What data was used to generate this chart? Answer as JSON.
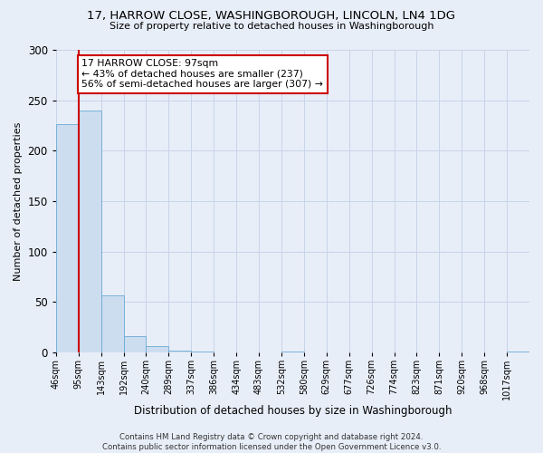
{
  "title": "17, HARROW CLOSE, WASHINGBOROUGH, LINCOLN, LN4 1DG",
  "subtitle": "Size of property relative to detached houses in Washingborough",
  "xlabel": "Distribution of detached houses by size in Washingborough",
  "ylabel": "Number of detached properties",
  "bin_labels": [
    "46sqm",
    "95sqm",
    "143sqm",
    "192sqm",
    "240sqm",
    "289sqm",
    "337sqm",
    "386sqm",
    "434sqm",
    "483sqm",
    "532sqm",
    "580sqm",
    "629sqm",
    "677sqm",
    "726sqm",
    "774sqm",
    "823sqm",
    "871sqm",
    "920sqm",
    "968sqm",
    "1017sqm"
  ],
  "bar_values": [
    226,
    240,
    57,
    16,
    6,
    2,
    1,
    0,
    0,
    0,
    1,
    0,
    0,
    0,
    0,
    0,
    0,
    0,
    0,
    0,
    1
  ],
  "bar_color": "#ccddf0",
  "bar_edge_color": "#6aaad4",
  "property_line_label": "17 HARROW CLOSE: 97sqm",
  "annotation_line1": "← 43% of detached houses are smaller (237)",
  "annotation_line2": "56% of semi-detached houses are larger (307) →",
  "annotation_box_color": "#ffffff",
  "annotation_box_edge": "#cc0000",
  "property_line_color": "#cc0000",
  "property_line_bar_index": 1,
  "ylim": [
    0,
    300
  ],
  "yticks": [
    0,
    50,
    100,
    150,
    200,
    250,
    300
  ],
  "grid_color": "#c8d4e8",
  "background_color": "#e8eef8",
  "footer1": "Contains HM Land Registry data © Crown copyright and database right 2024.",
  "footer2": "Contains public sector information licensed under the Open Government Licence v3.0."
}
